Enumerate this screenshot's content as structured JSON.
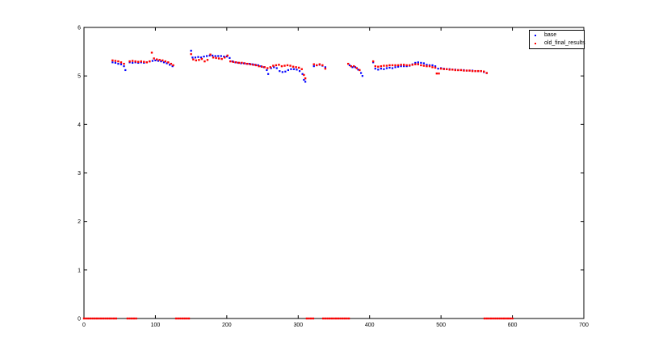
{
  "chart_data": {
    "type": "scatter",
    "title": "",
    "xlabel": "",
    "ylabel": "",
    "xlim": [
      0,
      700
    ],
    "ylim": [
      0,
      6
    ],
    "xticks": [
      0,
      100,
      200,
      300,
      400,
      500,
      600,
      700
    ],
    "yticks": [
      0,
      1,
      2,
      3,
      4,
      5,
      6
    ],
    "grid": false,
    "legend_position": "top-right",
    "series": [
      {
        "name": "base",
        "color": "#0000ff",
        "points": [
          [
            40,
            5.28
          ],
          [
            44,
            5.27
          ],
          [
            48,
            5.25
          ],
          [
            52,
            5.24
          ],
          [
            56,
            5.2
          ],
          [
            58,
            5.12
          ],
          [
            64,
            5.28
          ],
          [
            68,
            5.27
          ],
          [
            72,
            5.28
          ],
          [
            76,
            5.27
          ],
          [
            80,
            5.28
          ],
          [
            84,
            5.27
          ],
          [
            88,
            5.28
          ],
          [
            92,
            5.3
          ],
          [
            96,
            5.31
          ],
          [
            100,
            5.32
          ],
          [
            104,
            5.31
          ],
          [
            108,
            5.3
          ],
          [
            112,
            5.28
          ],
          [
            116,
            5.26
          ],
          [
            120,
            5.23
          ],
          [
            124,
            5.2
          ],
          [
            150,
            5.52
          ],
          [
            152,
            5.38
          ],
          [
            156,
            5.38
          ],
          [
            160,
            5.39
          ],
          [
            164,
            5.38
          ],
          [
            168,
            5.4
          ],
          [
            172,
            5.41
          ],
          [
            176,
            5.42
          ],
          [
            180,
            5.42
          ],
          [
            184,
            5.41
          ],
          [
            188,
            5.41
          ],
          [
            192,
            5.41
          ],
          [
            196,
            5.4
          ],
          [
            200,
            5.4
          ],
          [
            204,
            5.37
          ],
          [
            208,
            5.3
          ],
          [
            212,
            5.28
          ],
          [
            216,
            5.27
          ],
          [
            220,
            5.26
          ],
          [
            224,
            5.26
          ],
          [
            228,
            5.25
          ],
          [
            232,
            5.25
          ],
          [
            236,
            5.24
          ],
          [
            240,
            5.23
          ],
          [
            244,
            5.22
          ],
          [
            248,
            5.2
          ],
          [
            252,
            5.18
          ],
          [
            256,
            5.12
          ],
          [
            258,
            5.04
          ],
          [
            262,
            5.16
          ],
          [
            266,
            5.18
          ],
          [
            270,
            5.16
          ],
          [
            274,
            5.1
          ],
          [
            278,
            5.08
          ],
          [
            282,
            5.09
          ],
          [
            286,
            5.12
          ],
          [
            290,
            5.14
          ],
          [
            294,
            5.14
          ],
          [
            298,
            5.13
          ],
          [
            302,
            5.1
          ],
          [
            306,
            5.04
          ],
          [
            308,
            4.92
          ],
          [
            310,
            4.88
          ],
          [
            322,
            5.2
          ],
          [
            326,
            5.22
          ],
          [
            330,
            5.23
          ],
          [
            334,
            5.21
          ],
          [
            338,
            5.18
          ],
          [
            372,
            5.22
          ],
          [
            376,
            5.18
          ],
          [
            380,
            5.18
          ],
          [
            384,
            5.13
          ],
          [
            388,
            5.06
          ],
          [
            390,
            5.0
          ],
          [
            405,
            5.28
          ],
          [
            408,
            5.15
          ],
          [
            412,
            5.13
          ],
          [
            416,
            5.15
          ],
          [
            420,
            5.14
          ],
          [
            424,
            5.16
          ],
          [
            428,
            5.17
          ],
          [
            432,
            5.16
          ],
          [
            436,
            5.18
          ],
          [
            440,
            5.19
          ],
          [
            444,
            5.2
          ],
          [
            448,
            5.2
          ],
          [
            452,
            5.2
          ],
          [
            456,
            5.21
          ],
          [
            460,
            5.24
          ],
          [
            464,
            5.27
          ],
          [
            468,
            5.28
          ],
          [
            472,
            5.27
          ],
          [
            476,
            5.26
          ],
          [
            480,
            5.23
          ],
          [
            484,
            5.22
          ],
          [
            488,
            5.22
          ],
          [
            492,
            5.2
          ],
          [
            496,
            5.15
          ],
          [
            500,
            5.16
          ],
          [
            504,
            5.15
          ],
          [
            508,
            5.14
          ],
          [
            512,
            5.14
          ],
          [
            516,
            5.13
          ],
          [
            520,
            5.13
          ],
          [
            524,
            5.12
          ],
          [
            528,
            5.12
          ],
          [
            532,
            5.12
          ],
          [
            536,
            5.11
          ],
          [
            540,
            5.11
          ],
          [
            544,
            5.11
          ],
          [
            548,
            5.1
          ],
          [
            552,
            5.1
          ],
          [
            556,
            5.1
          ],
          [
            560,
            5.08
          ],
          [
            564,
            5.06
          ]
        ]
      },
      {
        "name": "old_final_results",
        "color": "#ff0000",
        "points": [
          [
            40,
            5.32
          ],
          [
            44,
            5.31
          ],
          [
            48,
            5.3
          ],
          [
            52,
            5.28
          ],
          [
            56,
            5.25
          ],
          [
            64,
            5.3
          ],
          [
            68,
            5.31
          ],
          [
            72,
            5.3
          ],
          [
            76,
            5.29
          ],
          [
            80,
            5.3
          ],
          [
            84,
            5.29
          ],
          [
            88,
            5.28
          ],
          [
            92,
            5.3
          ],
          [
            95,
            5.48
          ],
          [
            98,
            5.36
          ],
          [
            102,
            5.34
          ],
          [
            106,
            5.33
          ],
          [
            110,
            5.32
          ],
          [
            114,
            5.3
          ],
          [
            118,
            5.28
          ],
          [
            122,
            5.25
          ],
          [
            125,
            5.22
          ],
          [
            150,
            5.45
          ],
          [
            153,
            5.34
          ],
          [
            157,
            5.32
          ],
          [
            161,
            5.33
          ],
          [
            165,
            5.35
          ],
          [
            169,
            5.3
          ],
          [
            173,
            5.33
          ],
          [
            177,
            5.44
          ],
          [
            181,
            5.38
          ],
          [
            185,
            5.37
          ],
          [
            189,
            5.36
          ],
          [
            193,
            5.35
          ],
          [
            197,
            5.38
          ],
          [
            201,
            5.42
          ],
          [
            205,
            5.3
          ],
          [
            209,
            5.29
          ],
          [
            213,
            5.28
          ],
          [
            217,
            5.27
          ],
          [
            221,
            5.27
          ],
          [
            225,
            5.26
          ],
          [
            229,
            5.25
          ],
          [
            233,
            5.24
          ],
          [
            237,
            5.23
          ],
          [
            241,
            5.22
          ],
          [
            245,
            5.2
          ],
          [
            249,
            5.19
          ],
          [
            253,
            5.18
          ],
          [
            257,
            5.16
          ],
          [
            261,
            5.18
          ],
          [
            265,
            5.21
          ],
          [
            269,
            5.22
          ],
          [
            273,
            5.23
          ],
          [
            277,
            5.2
          ],
          [
            281,
            5.21
          ],
          [
            285,
            5.22
          ],
          [
            289,
            5.21
          ],
          [
            293,
            5.19
          ],
          [
            297,
            5.18
          ],
          [
            301,
            5.17
          ],
          [
            305,
            5.14
          ],
          [
            308,
            5.02
          ],
          [
            310,
            4.95
          ],
          [
            322,
            5.24
          ],
          [
            326,
            5.22
          ],
          [
            330,
            5.24
          ],
          [
            334,
            5.22
          ],
          [
            338,
            5.15
          ],
          [
            370,
            5.25
          ],
          [
            374,
            5.2
          ],
          [
            378,
            5.2
          ],
          [
            382,
            5.16
          ],
          [
            386,
            5.12
          ],
          [
            405,
            5.3
          ],
          [
            408,
            5.2
          ],
          [
            412,
            5.19
          ],
          [
            416,
            5.2
          ],
          [
            420,
            5.21
          ],
          [
            424,
            5.21
          ],
          [
            428,
            5.22
          ],
          [
            432,
            5.22
          ],
          [
            436,
            5.22
          ],
          [
            440,
            5.22
          ],
          [
            444,
            5.23
          ],
          [
            448,
            5.23
          ],
          [
            452,
            5.22
          ],
          [
            456,
            5.22
          ],
          [
            460,
            5.23
          ],
          [
            464,
            5.24
          ],
          [
            468,
            5.24
          ],
          [
            472,
            5.22
          ],
          [
            476,
            5.21
          ],
          [
            480,
            5.2
          ],
          [
            484,
            5.2
          ],
          [
            488,
            5.18
          ],
          [
            492,
            5.17
          ],
          [
            494,
            5.05
          ],
          [
            497,
            5.05
          ],
          [
            500,
            5.15
          ],
          [
            504,
            5.14
          ],
          [
            508,
            5.14
          ],
          [
            512,
            5.13
          ],
          [
            516,
            5.13
          ],
          [
            520,
            5.12
          ],
          [
            524,
            5.12
          ],
          [
            528,
            5.12
          ],
          [
            532,
            5.11
          ],
          [
            536,
            5.11
          ],
          [
            540,
            5.11
          ],
          [
            544,
            5.1
          ],
          [
            548,
            5.1
          ],
          [
            552,
            5.1
          ],
          [
            556,
            5.1
          ],
          [
            560,
            5.09
          ],
          [
            564,
            5.06
          ],
          [
            0,
            0
          ],
          [
            3,
            0
          ],
          [
            6,
            0
          ],
          [
            9,
            0
          ],
          [
            12,
            0
          ],
          [
            15,
            0
          ],
          [
            18,
            0
          ],
          [
            21,
            0
          ],
          [
            24,
            0
          ],
          [
            27,
            0
          ],
          [
            30,
            0
          ],
          [
            33,
            0
          ],
          [
            36,
            0
          ],
          [
            39,
            0
          ],
          [
            42,
            0
          ],
          [
            45,
            0
          ],
          [
            61,
            0
          ],
          [
            64,
            0
          ],
          [
            67,
            0
          ],
          [
            70,
            0
          ],
          [
            73,
            0
          ],
          [
            129,
            0
          ],
          [
            132,
            0
          ],
          [
            135,
            0
          ],
          [
            138,
            0
          ],
          [
            141,
            0
          ],
          [
            144,
            0
          ],
          [
            147,
            0
          ],
          [
            312,
            0
          ],
          [
            315,
            0
          ],
          [
            318,
            0
          ],
          [
            321,
            0
          ],
          [
            335,
            0
          ],
          [
            338,
            0
          ],
          [
            341,
            0
          ],
          [
            344,
            0
          ],
          [
            347,
            0
          ],
          [
            350,
            0
          ],
          [
            353,
            0
          ],
          [
            356,
            0
          ],
          [
            359,
            0
          ],
          [
            362,
            0
          ],
          [
            365,
            0
          ],
          [
            368,
            0
          ],
          [
            371,
            0
          ],
          [
            561,
            0
          ],
          [
            564,
            0
          ],
          [
            567,
            0
          ],
          [
            570,
            0
          ],
          [
            573,
            0
          ],
          [
            576,
            0
          ],
          [
            579,
            0
          ],
          [
            582,
            0
          ],
          [
            585,
            0
          ],
          [
            588,
            0
          ],
          [
            591,
            0
          ],
          [
            594,
            0
          ],
          [
            597,
            0
          ],
          [
            600,
            0
          ]
        ]
      }
    ]
  }
}
